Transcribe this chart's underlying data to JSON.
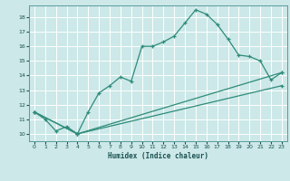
{
  "title": "",
  "xlabel": "Humidex (Indice chaleur)",
  "bg_color": "#cce8e8",
  "grid_color": "#ffffff",
  "line_color": "#2e8b7a",
  "xlim": [
    -0.5,
    23.5
  ],
  "ylim": [
    9.5,
    18.8
  ],
  "xticks": [
    0,
    1,
    2,
    3,
    4,
    5,
    6,
    7,
    8,
    9,
    10,
    11,
    12,
    13,
    14,
    15,
    16,
    17,
    18,
    19,
    20,
    21,
    22,
    23
  ],
  "yticks": [
    10,
    11,
    12,
    13,
    14,
    15,
    16,
    17,
    18
  ],
  "line1_x": [
    0,
    1,
    2,
    3,
    4,
    5,
    6,
    7,
    8,
    9,
    10,
    11,
    12,
    13,
    14,
    15,
    16,
    17,
    18,
    19,
    20,
    21,
    22,
    23
  ],
  "line1_y": [
    11.5,
    11.0,
    10.2,
    10.5,
    10.0,
    11.5,
    12.8,
    13.3,
    13.9,
    13.6,
    16.0,
    16.0,
    16.3,
    16.7,
    17.6,
    18.5,
    18.2,
    17.5,
    16.5,
    15.4,
    15.3,
    15.0,
    13.7,
    14.2
  ],
  "line2_x": [
    0,
    4,
    23
  ],
  "line2_y": [
    11.5,
    10.0,
    14.2
  ],
  "line3_x": [
    0,
    4,
    23
  ],
  "line3_y": [
    11.5,
    10.0,
    13.3
  ]
}
